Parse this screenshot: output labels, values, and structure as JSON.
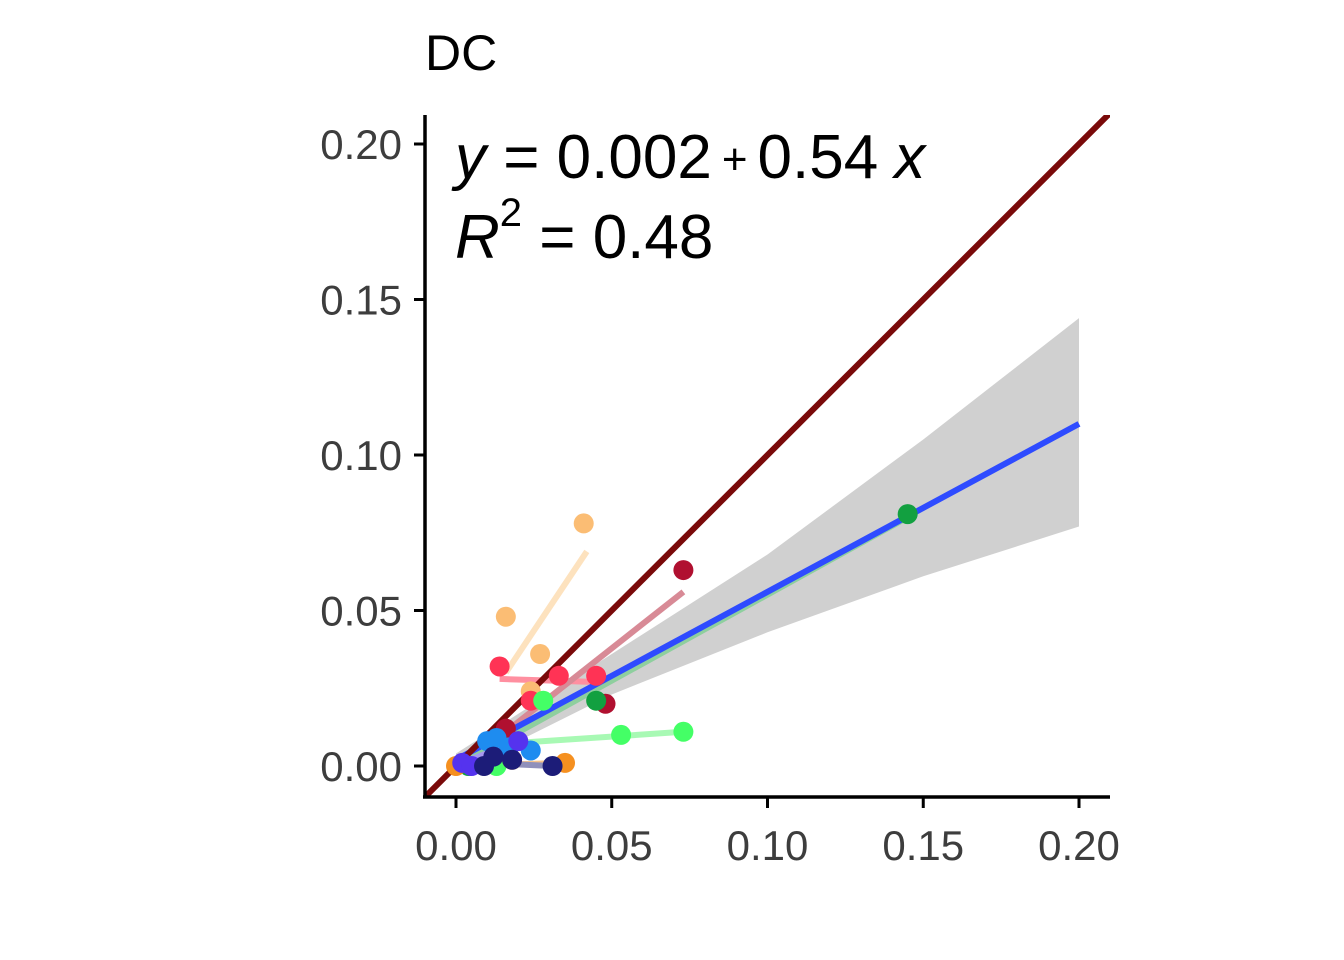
{
  "chart_data": {
    "type": "scatter",
    "title": "DC",
    "xlabel": "",
    "ylabel": "",
    "xlim": [
      -0.009,
      0.21
    ],
    "ylim": [
      -0.01,
      0.21
    ],
    "x_ticks": [
      "0.00",
      "0.05",
      "0.10",
      "0.15",
      "0.20"
    ],
    "y_ticks": [
      "0.00",
      "0.05",
      "0.10",
      "0.15",
      "0.20"
    ],
    "x_tick_values": [
      0,
      0.05,
      0.1,
      0.15,
      0.2
    ],
    "y_tick_values": [
      0,
      0.05,
      0.1,
      0.15,
      0.2
    ],
    "grid": false,
    "legend": "none",
    "annotation": {
      "equation": {
        "y_var": "y",
        "eq_sign": " = ",
        "intercept": "0.002",
        "plus": "+",
        "slope": "0.54",
        "x_var": "x"
      },
      "r2": {
        "r_var": "R",
        "sup": "2",
        "eq_sign": " = ",
        "value": "0.48"
      }
    },
    "identity_line": {
      "color": "#7a0a0a",
      "from": [
        -0.01,
        -0.01
      ],
      "to": [
        0.21,
        0.21
      ]
    },
    "regression_line": {
      "color": "#2e4bff",
      "intercept": 0.002,
      "slope": 0.54,
      "x_range": [
        0.0,
        0.2
      ],
      "ci_band": {
        "color": "#d0d0d0",
        "x": [
          0.0,
          0.05,
          0.1,
          0.15,
          0.2
        ],
        "lower": [
          -0.002,
          0.023,
          0.043,
          0.061,
          0.077
        ],
        "upper": [
          0.004,
          0.036,
          0.068,
          0.105,
          0.144
        ]
      }
    },
    "series": [
      {
        "color": "#fbbd74",
        "line_color": "#fde2be",
        "points": [
          [
            0.041,
            0.078
          ],
          [
            0.016,
            0.048
          ],
          [
            0.027,
            0.036
          ],
          [
            0.024,
            0.024
          ]
        ],
        "fit": [
          [
            0.016,
            0.03
          ],
          [
            0.042,
            0.069
          ]
        ]
      },
      {
        "color": "#ff3355",
        "line_color": "#ff8fa0",
        "points": [
          [
            0.014,
            0.032
          ],
          [
            0.033,
            0.029
          ],
          [
            0.045,
            0.029
          ],
          [
            0.024,
            0.021
          ]
        ],
        "fit": [
          [
            0.014,
            0.028
          ],
          [
            0.045,
            0.027
          ]
        ]
      },
      {
        "color": "#b01030",
        "line_color": "#d88a96",
        "points": [
          [
            0.073,
            0.063
          ],
          [
            0.048,
            0.02
          ],
          [
            0.016,
            0.012
          ]
        ],
        "fit": [
          [
            0.016,
            0.011
          ],
          [
            0.073,
            0.056
          ]
        ]
      },
      {
        "color": "#44ff66",
        "line_color": "#a8f9b4",
        "points": [
          [
            0.073,
            0.011
          ],
          [
            0.053,
            0.01
          ],
          [
            0.028,
            0.021
          ],
          [
            0.013,
            0.0
          ]
        ],
        "fit": [
          [
            0.013,
            0.007
          ],
          [
            0.073,
            0.011
          ]
        ]
      },
      {
        "color": "#12a040",
        "line_color": "#8ecf9e",
        "points": [
          [
            0.145,
            0.081
          ],
          [
            0.045,
            0.021
          ],
          [
            0.004,
            0.0
          ]
        ],
        "fit": [
          [
            0.004,
            0.002
          ],
          [
            0.145,
            0.08
          ]
        ]
      },
      {
        "color": "#f59020",
        "line_color": "#f8c48a",
        "points": [
          [
            0.035,
            0.001
          ],
          [
            0.0,
            0.0
          ],
          [
            0.018,
            0.002
          ]
        ],
        "fit": [
          [
            0.0,
            0.0
          ],
          [
            0.035,
            0.001
          ]
        ]
      },
      {
        "color": "#1e8cf0",
        "line_color": "#8cc4f4",
        "points": [
          [
            0.024,
            0.005
          ],
          [
            0.013,
            0.009
          ],
          [
            0.017,
            0.006
          ],
          [
            0.01,
            0.008
          ]
        ],
        "fit": [
          [
            0.01,
            0.009
          ],
          [
            0.024,
            0.005
          ]
        ]
      },
      {
        "color": "#5533ee",
        "line_color": "#a898f0",
        "points": [
          [
            0.002,
            0.001
          ],
          [
            0.02,
            0.008
          ],
          [
            0.005,
            0.0
          ]
        ],
        "fit": [
          [
            0.002,
            0.001
          ],
          [
            0.02,
            0.008
          ]
        ]
      },
      {
        "color": "#1c1c78",
        "line_color": "#9090bb",
        "points": [
          [
            0.009,
            0.0
          ],
          [
            0.012,
            0.003
          ],
          [
            0.018,
            0.002
          ],
          [
            0.031,
            0.0
          ]
        ],
        "fit": [
          [
            0.009,
            0.001
          ],
          [
            0.031,
            0.0
          ]
        ]
      }
    ]
  }
}
